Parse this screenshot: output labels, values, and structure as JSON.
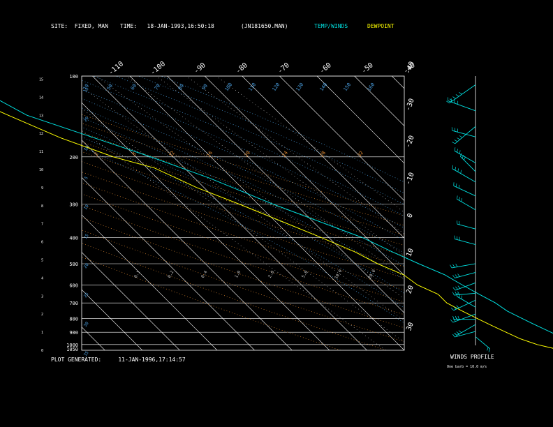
{
  "header": {
    "site_label": "SITE:",
    "site_value": "FIXED, MAN",
    "time_label": "TIME:",
    "time_value": "18-JAN-1993,16:50:18",
    "file_value": "(JN181650.MAN)",
    "legend_temp": "TEMP/WINDS",
    "legend_dew": "DEWPOINT"
  },
  "footer": {
    "generated_label": "PLOT GENERATED:",
    "generated_value": "11-JAN-1996,17:14:57"
  },
  "wind_panel": {
    "title": "WINDS PROFILE",
    "note": "One barb = 10.0 m/s"
  },
  "colors": {
    "temp": "#00e0e0",
    "dew": "#ffff00",
    "isobar": "#ffffff",
    "isotherm": "#ffffff",
    "dry_adiabat": "#e08a30",
    "moist_adiabat": "#4a9fe0",
    "mixing_ratio": "#c8c8c8"
  },
  "chart_data": {
    "type": "line",
    "title": "",
    "pressure_ticks": [
      "100",
      "200",
      "300",
      "400",
      "500",
      "600",
      "700",
      "800",
      "900",
      "1000",
      "1050"
    ],
    "height_ticks": [
      "0",
      "1",
      "2",
      "3",
      "4",
      "5",
      "6",
      "7",
      "8",
      "9",
      "10",
      "11",
      "12",
      "13",
      "14",
      "15"
    ],
    "right_temp_ticks": [
      "-40",
      "-30",
      "-20",
      "-10",
      "0",
      "10",
      "20",
      "30"
    ],
    "top_temp_ticks": [
      "-110",
      "-100",
      "-90",
      "-80",
      "-70",
      "-60",
      "-50",
      "-40"
    ],
    "moist_labels": [
      "10",
      "50",
      "60",
      "70",
      "80",
      "90",
      "100",
      "110",
      "120",
      "130",
      "140",
      "150",
      "160"
    ],
    "moist_left_labels": [
      "15",
      "20",
      "10",
      "5",
      "10",
      "15",
      "20",
      "25",
      "30",
      "35"
    ],
    "dry_labels": [
      "2",
      "8",
      "12",
      "16",
      "20",
      "24",
      "28",
      "32"
    ],
    "mixing_labels": [
      "0.1",
      "0.2",
      "0.4",
      "1.0",
      "2.0",
      "5.0",
      "10.0",
      "20.0"
    ],
    "series": [
      {
        "key": "temperature",
        "points": [
          [
            100,
            -92
          ],
          [
            120,
            -82
          ],
          [
            140,
            -78
          ],
          [
            170,
            -66
          ],
          [
            200,
            -56
          ],
          [
            240,
            -46
          ],
          [
            300,
            -36
          ],
          [
            350,
            -28
          ],
          [
            400,
            -21
          ],
          [
            450,
            -17
          ],
          [
            500,
            -13
          ],
          [
            550,
            -9
          ],
          [
            600,
            -7
          ],
          [
            650,
            -5
          ],
          [
            700,
            -3
          ],
          [
            750,
            -2
          ],
          [
            800,
            0
          ],
          [
            850,
            2
          ],
          [
            900,
            4
          ],
          [
            950,
            6
          ],
          [
            1000,
            8
          ],
          [
            1040,
            9
          ]
        ]
      },
      {
        "key": "dewpoint",
        "points": [
          [
            100,
            -95
          ],
          [
            120,
            -89
          ],
          [
            140,
            -83
          ],
          [
            170,
            -75
          ],
          [
            200,
            -66
          ],
          [
            220,
            -58
          ],
          [
            260,
            -52
          ],
          [
            300,
            -45
          ],
          [
            350,
            -38
          ],
          [
            400,
            -32
          ],
          [
            450,
            -27
          ],
          [
            500,
            -24
          ],
          [
            550,
            -20
          ],
          [
            600,
            -19
          ],
          [
            650,
            -16
          ],
          [
            700,
            -16
          ],
          [
            750,
            -14
          ],
          [
            800,
            -12
          ],
          [
            850,
            -10
          ],
          [
            900,
            -8
          ],
          [
            950,
            -6
          ],
          [
            1000,
            -3
          ],
          [
            1040,
            1
          ]
        ]
      }
    ],
    "winds": [
      {
        "h": 15.0,
        "dir": 235,
        "spd": 45
      },
      {
        "h": 13.5,
        "dir": 290,
        "spd": 40
      },
      {
        "h": 12.6,
        "dir": 230,
        "spd": 35
      },
      {
        "h": 12.0,
        "dir": 285,
        "spd": 30
      },
      {
        "h": 10.5,
        "dir": 300,
        "spd": 30
      },
      {
        "h": 10.0,
        "dir": 315,
        "spd": 25
      },
      {
        "h": 9.4,
        "dir": 300,
        "spd": 35
      },
      {
        "h": 8.6,
        "dir": 295,
        "spd": 30
      },
      {
        "h": 7.8,
        "dir": 300,
        "spd": 25
      },
      {
        "h": 6.7,
        "dir": 285,
        "spd": 20
      },
      {
        "h": 5.8,
        "dir": 285,
        "spd": 25
      },
      {
        "h": 4.7,
        "dir": 260,
        "spd": 30
      },
      {
        "h": 4.2,
        "dir": 255,
        "spd": 25
      },
      {
        "h": 3.6,
        "dir": 250,
        "spd": 25
      },
      {
        "h": 3.0,
        "dir": 265,
        "spd": 25
      },
      {
        "h": 2.6,
        "dir": 245,
        "spd": 30
      },
      {
        "h": 2.2,
        "dir": 300,
        "spd": 25
      },
      {
        "h": 1.8,
        "dir": 250,
        "spd": 30
      },
      {
        "h": 1.5,
        "dir": 270,
        "spd": 25
      },
      {
        "h": 1.2,
        "dir": 240,
        "spd": 25
      },
      {
        "h": 0.8,
        "dir": 255,
        "spd": 25
      },
      {
        "h": 0.5,
        "dir": 130,
        "spd": 20
      }
    ]
  }
}
